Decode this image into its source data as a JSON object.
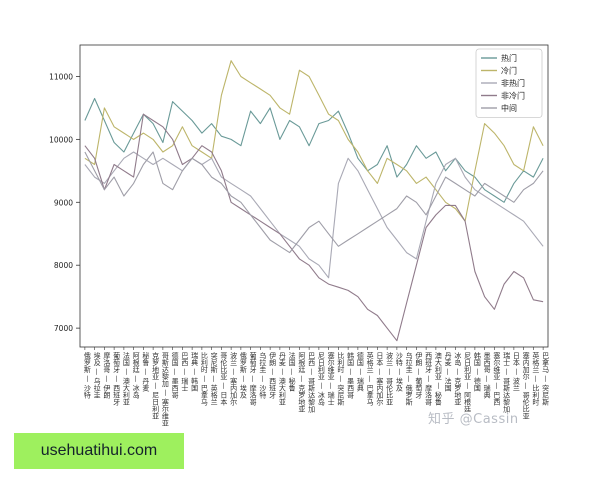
{
  "chart_data": {
    "type": "line",
    "title": "",
    "xlabel": "",
    "ylabel": "",
    "ylim": [
      6700,
      11500
    ],
    "yticks": [
      7000,
      8000,
      9000,
      10000,
      11000
    ],
    "grid": false,
    "legend_position": "top-right",
    "categories": [
      "俄罗斯 — 沙特",
      "埃及 — 乌拉圭",
      "摩洛哥 — 伊朗",
      "葡萄牙 — 西班牙",
      "法国 — 澳大利亚",
      "阿根廷 — 冰岛",
      "秘鲁 — 丹麦",
      "克罗地亚 — 尼日利亚",
      "哥斯达黎加 — 塞尔维亚",
      "德国 — 墨西哥",
      "巴西 — 瑞士",
      "瑞典 — 韩国",
      "比利时 — 巴拿马",
      "突尼斯 — 英格兰",
      "哥伦比亚 — 日本",
      "波兰 — 塞内加尔",
      "俄罗斯 — 埃及",
      "葡萄牙 — 摩洛哥",
      "乌拉圭 — 沙特",
      "伊朗 — 西班牙",
      "丹麦 — 澳大利亚",
      "法国 — 秘鲁",
      "阿根廷 — 克罗地亚",
      "巴西 — 哥斯达黎加",
      "尼日利亚 — 冰岛",
      "塞尔维亚 — 瑞士",
      "比利时 — 突尼斯",
      "韩国 — 墨西哥",
      "德国 — 瑞典",
      "英格兰 — 巴拿马",
      "日本 — 塞内加尔",
      "波兰 — 哥伦比亚",
      "沙特 — 埃及",
      "乌拉圭 — 俄罗斯",
      "伊朗 — 葡萄牙",
      "西班牙 — 摩洛哥",
      "澳大利亚 — 秘鲁",
      "丹麦 — 法国",
      "冰岛 — 克罗地亚",
      "尼日利亚 — 阿根廷",
      "韩国 — 德国",
      "墨西哥 — 瑞典",
      "塞尔维亚 — 巴西",
      "瑞士 — 哥斯达黎加",
      "日本 — 波兰",
      "塞内加尔 — 哥伦比亚",
      "英格兰 — 比利时",
      "巴拿马 — 突尼斯"
    ],
    "series": [
      {
        "name": "热门",
        "color": "#6a9a98",
        "values": [
          10300,
          10650,
          10300,
          9950,
          9800,
          10100,
          10400,
          10250,
          9950,
          10600,
          10450,
          10300,
          10100,
          10250,
          10050,
          10000,
          9900,
          10450,
          10250,
          10500,
          10000,
          10300,
          10200,
          9900,
          10250,
          10300,
          10450,
          10100,
          9700,
          9500,
          9600,
          9900,
          9400,
          9600,
          9900,
          9700,
          9800,
          9500,
          9700,
          9500,
          9400,
          9200,
          9100,
          9000,
          9300,
          9500,
          9400,
          9700
        ]
      },
      {
        "name": "冷门",
        "color": "#bdb56a",
        "values": [
          9700,
          9600,
          10500,
          10200,
          10100,
          10000,
          10100,
          10000,
          9800,
          9900,
          10200,
          9900,
          9800,
          9700,
          10700,
          11250,
          11000,
          10900,
          10800,
          10700,
          10500,
          10400,
          11100,
          11000,
          10700,
          10400,
          10300,
          10000,
          9800,
          9500,
          9300,
          9700,
          9600,
          9500,
          9300,
          9400,
          9200,
          9000,
          8900,
          8700,
          9500,
          10250,
          10100,
          9900,
          9600,
          9500,
          10200,
          9900
        ]
      },
      {
        "name": "非热门",
        "color": "#a9a9b5",
        "values": [
          9600,
          9400,
          9300,
          9500,
          9700,
          9800,
          9700,
          9600,
          9700,
          9600,
          9500,
          9700,
          9600,
          9700,
          9400,
          9300,
          9200,
          9100,
          8900,
          8700,
          8500,
          8400,
          8300,
          8100,
          8000,
          7800,
          9300,
          9700,
          9500,
          9200,
          8900,
          8600,
          8400,
          8200,
          8100,
          8700,
          9300,
          9600,
          9700,
          9400,
          9200,
          9100,
          9000,
          8900,
          8800,
          8700,
          8500,
          8300
        ]
      },
      {
        "name": "非冷门",
        "color": "#907b8b",
        "values": [
          9900,
          9700,
          9200,
          9600,
          9500,
          9400,
          10400,
          10300,
          10200,
          10000,
          9600,
          9700,
          9900,
          9800,
          9500,
          9000,
          8900,
          8800,
          8700,
          8600,
          8500,
          8300,
          8100,
          8000,
          7800,
          7700,
          7650,
          7600,
          7500,
          7300,
          7200,
          7000,
          6800,
          7400,
          8000,
          8600,
          8800,
          8950,
          8950,
          8700,
          7900,
          7500,
          7300,
          7700,
          7900,
          7800,
          7450,
          7420
        ]
      },
      {
        "name": "中间",
        "color": "#9f9ea8",
        "values": [
          9800,
          9500,
          9200,
          9400,
          9100,
          9300,
          9600,
          9800,
          9300,
          9200,
          9500,
          9700,
          9600,
          9400,
          9300,
          9100,
          9000,
          8800,
          8600,
          8400,
          8300,
          8200,
          8400,
          8600,
          8700,
          8500,
          8300,
          8400,
          8500,
          8600,
          8700,
          8800,
          8900,
          9100,
          9000,
          8800,
          9100,
          9400,
          9300,
          9200,
          9100,
          9300,
          9200,
          9100,
          9000,
          9200,
          9300,
          9500
        ]
      }
    ]
  },
  "watermark": "知乎 @Cassin",
  "footer": {
    "site": "usehuatihui.com"
  }
}
